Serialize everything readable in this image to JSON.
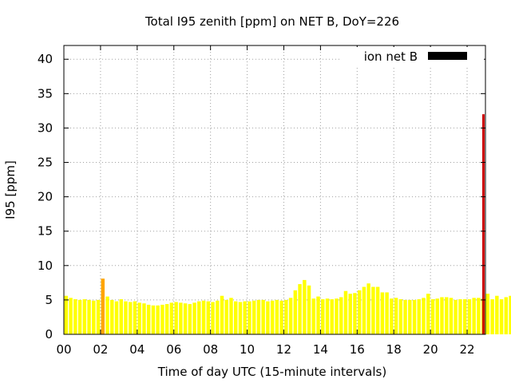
{
  "chart_data": {
    "type": "bar",
    "title": "Total I95 zenith [ppm] on NET B, DoY=226",
    "xlabel": "Time of day UTC (15-minute intervals)",
    "ylabel": "I95 [ppm]",
    "xlim": [
      0,
      23
    ],
    "ylim": [
      0,
      42
    ],
    "x_ticks": [
      0,
      2,
      4,
      6,
      8,
      10,
      12,
      14,
      16,
      18,
      20,
      22
    ],
    "x_tick_labels": [
      "00",
      "02",
      "04",
      "06",
      "08",
      "10",
      "12",
      "14",
      "16",
      "18",
      "20",
      "22"
    ],
    "y_ticks": [
      0,
      5,
      10,
      15,
      20,
      25,
      30,
      35,
      40
    ],
    "y_tick_labels": [
      "0",
      "5",
      "10",
      "15",
      "20",
      "25",
      "30",
      "35",
      "40"
    ],
    "grid": true,
    "legend": {
      "position": "top-right",
      "entries": [
        {
          "label": "ion net B",
          "color": "#000000"
        }
      ]
    },
    "bar_interval_hours": 0.25,
    "colors": {
      "normal": "#ffff00",
      "elevated": "#ffa500",
      "high": "#cc0000"
    },
    "values": [
      5.6,
      5.3,
      5.1,
      5.0,
      5.1,
      5.0,
      4.9,
      5.0,
      8.1,
      5.5,
      5.0,
      4.8,
      5.1,
      4.8,
      4.7,
      4.8,
      4.6,
      4.5,
      4.3,
      4.2,
      4.2,
      4.3,
      4.4,
      4.6,
      4.7,
      4.6,
      4.5,
      4.4,
      4.6,
      4.8,
      4.9,
      4.8,
      4.7,
      4.9,
      5.6,
      5.0,
      5.3,
      4.8,
      4.7,
      4.8,
      4.8,
      4.9,
      5.0,
      5.0,
      4.8,
      4.9,
      5.0,
      4.9,
      5.0,
      5.3,
      6.4,
      7.3,
      7.9,
      7.1,
      5.2,
      5.5,
      5.1,
      5.2,
      5.1,
      5.2,
      5.4,
      6.3,
      5.9,
      6.0,
      6.4,
      6.9,
      7.4,
      6.9,
      6.9,
      6.1,
      6.1,
      5.2,
      5.3,
      5.1,
      5.0,
      5.0,
      5.0,
      5.1,
      5.3,
      5.9,
      5.1,
      5.2,
      5.4,
      5.4,
      5.3,
      5.0,
      5.1,
      5.1,
      5.1,
      5.3,
      5.3,
      5.2,
      5.9,
      5.1,
      5.6,
      5.1,
      5.4,
      5.6,
      5.5
    ],
    "bar_colors": [
      "normal",
      "normal",
      "normal",
      "normal",
      "normal",
      "normal",
      "normal",
      "normal",
      "elevated",
      "normal",
      "normal",
      "normal",
      "normal",
      "normal",
      "normal",
      "normal",
      "normal",
      "normal",
      "normal",
      "normal",
      "normal",
      "normal",
      "normal",
      "normal",
      "normal",
      "normal",
      "normal",
      "normal",
      "normal",
      "normal",
      "normal",
      "normal",
      "normal",
      "normal",
      "normal",
      "normal",
      "normal",
      "normal",
      "normal",
      "normal",
      "normal",
      "normal",
      "normal",
      "normal",
      "normal",
      "normal",
      "normal",
      "normal",
      "normal",
      "normal",
      "normal",
      "normal",
      "normal",
      "normal",
      "normal",
      "normal",
      "normal",
      "normal",
      "normal",
      "normal",
      "normal",
      "normal",
      "normal",
      "normal",
      "normal",
      "normal",
      "normal",
      "normal",
      "normal",
      "normal",
      "normal",
      "normal",
      "normal",
      "normal",
      "normal",
      "normal",
      "normal",
      "normal",
      "normal",
      "normal",
      "normal",
      "normal",
      "normal",
      "normal",
      "normal",
      "normal",
      "normal",
      "normal",
      "normal",
      "normal",
      "normal",
      "normal",
      "normal",
      "normal",
      "normal",
      "normal",
      "normal",
      "normal",
      "normal"
    ],
    "final_bar": {
      "value": 32.0,
      "color": "high"
    }
  }
}
